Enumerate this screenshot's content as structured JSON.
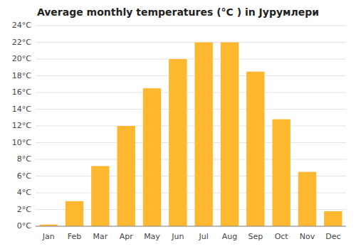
{
  "chart_data": {
    "type": "bar",
    "title": "Average monthly temperatures (°C ) in Јурумлери",
    "categories": [
      "Jan",
      "Feb",
      "Mar",
      "Apr",
      "May",
      "Jun",
      "Jul",
      "Aug",
      "Sep",
      "Oct",
      "Nov",
      "Dec"
    ],
    "values": [
      0.2,
      3.0,
      7.2,
      12.0,
      16.5,
      20.0,
      22.0,
      22.0,
      18.5,
      12.8,
      6.5,
      1.8
    ],
    "color": "#FDB830",
    "ylim": [
      0,
      24
    ],
    "yticks": [
      {
        "value": 0,
        "label": "0°C"
      },
      {
        "value": 2,
        "label": "2°C"
      },
      {
        "value": 4,
        "label": "4°C"
      },
      {
        "value": 6,
        "label": "6°C"
      },
      {
        "value": 8,
        "label": "8°C"
      },
      {
        "value": 10,
        "label": "10°C"
      },
      {
        "value": 12,
        "label": "12°C"
      },
      {
        "value": 14,
        "label": "14°C"
      },
      {
        "value": 16,
        "label": "16°C"
      },
      {
        "value": 18,
        "label": "18°C"
      },
      {
        "value": 20,
        "label": "20°C"
      },
      {
        "value": 22,
        "label": "22°C"
      },
      {
        "value": 24,
        "label": "24°C"
      }
    ],
    "grid": true
  }
}
